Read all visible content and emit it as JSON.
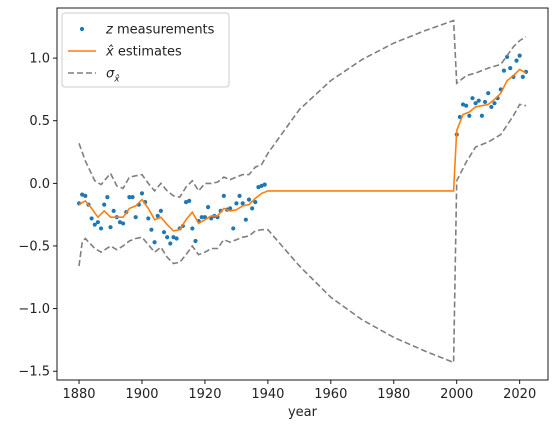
{
  "chart_data": {
    "type": "line",
    "xlabel": "year",
    "ylabel": "",
    "xlim": [
      1873,
      2029
    ],
    "ylim": [
      -1.57,
      1.4
    ],
    "xticks": [
      1880,
      1900,
      1920,
      1940,
      1960,
      1980,
      2000,
      2020
    ],
    "xtick_labels": [
      "1880",
      "1900",
      "1920",
      "1940",
      "1960",
      "1980",
      "2000",
      "2020"
    ],
    "yticks": [
      -1.5,
      -1.0,
      -0.5,
      0.0,
      0.5,
      1.0
    ],
    "ytick_labels": [
      "−1.5",
      "−1.0",
      "−0.5",
      "0.0",
      "0.5",
      "1.0"
    ],
    "legend": {
      "position": "upper-left",
      "entries": [
        {
          "math": "z",
          "text": " measurements",
          "style": "markers",
          "color": "#1f77b4"
        },
        {
          "math": "x̂",
          "text": " estimates",
          "style": "solid",
          "color": "#ff7f0e"
        },
        {
          "math": "σ",
          "sub": "x̂",
          "text": "",
          "style": "dashed",
          "color": "#7f7f7f"
        }
      ]
    },
    "series": [
      {
        "name": "z measurements",
        "style": "markers",
        "color": "#1f77b4",
        "x": [
          1880,
          1881,
          1882,
          1883,
          1884,
          1885,
          1886,
          1887,
          1888,
          1889,
          1890,
          1891,
          1892,
          1893,
          1894,
          1895,
          1896,
          1897,
          1898,
          1899,
          1900,
          1901,
          1902,
          1903,
          1904,
          1905,
          1906,
          1907,
          1908,
          1909,
          1910,
          1911,
          1912,
          1913,
          1914,
          1915,
          1916,
          1917,
          1918,
          1919,
          1920,
          1921,
          1922,
          1923,
          1924,
          1925,
          1926,
          1927,
          1928,
          1929,
          1930,
          1931,
          1932,
          1933,
          1934,
          1935,
          1936,
          1937,
          1938,
          1939,
          2000,
          2001,
          2002,
          2003,
          2004,
          2005,
          2006,
          2007,
          2008,
          2009,
          2010,
          2011,
          2012,
          2013,
          2014,
          2015,
          2016,
          2017,
          2018,
          2019,
          2020,
          2021,
          2022
        ],
        "y": [
          -0.16,
          -0.09,
          -0.1,
          -0.17,
          -0.28,
          -0.33,
          -0.31,
          -0.36,
          -0.17,
          -0.11,
          -0.35,
          -0.22,
          -0.27,
          -0.31,
          -0.32,
          -0.23,
          -0.11,
          -0.11,
          -0.27,
          -0.17,
          -0.08,
          -0.15,
          -0.28,
          -0.37,
          -0.47,
          -0.26,
          -0.22,
          -0.39,
          -0.43,
          -0.48,
          -0.43,
          -0.44,
          -0.36,
          -0.34,
          -0.15,
          -0.14,
          -0.36,
          -0.46,
          -0.3,
          -0.27,
          -0.27,
          -0.19,
          -0.28,
          -0.26,
          -0.27,
          -0.22,
          -0.1,
          -0.21,
          -0.2,
          -0.36,
          -0.16,
          -0.1,
          -0.16,
          -0.29,
          -0.13,
          -0.2,
          -0.15,
          -0.03,
          -0.02,
          -0.01,
          0.39,
          0.53,
          0.63,
          0.62,
          0.54,
          0.68,
          0.64,
          0.66,
          0.54,
          0.65,
          0.72,
          0.61,
          0.64,
          0.68,
          0.75,
          0.9,
          1.01,
          0.92,
          0.85,
          0.98,
          1.02,
          0.85,
          0.89
        ]
      },
      {
        "name": "x̂ estimates",
        "style": "solid",
        "color": "#ff7f0e",
        "x": [
          1880,
          1882,
          1884,
          1886,
          1888,
          1890,
          1892,
          1894,
          1896,
          1898,
          1900,
          1902,
          1904,
          1906,
          1908,
          1910,
          1912,
          1914,
          1916,
          1918,
          1920,
          1922,
          1924,
          1926,
          1928,
          1930,
          1932,
          1934,
          1936,
          1938,
          1940,
          1999,
          2000,
          2002,
          2004,
          2006,
          2008,
          2010,
          2012,
          2014,
          2016,
          2018,
          2020,
          2022
        ],
        "y": [
          -0.17,
          -0.14,
          -0.2,
          -0.27,
          -0.22,
          -0.27,
          -0.27,
          -0.27,
          -0.2,
          -0.18,
          -0.13,
          -0.2,
          -0.29,
          -0.27,
          -0.33,
          -0.38,
          -0.37,
          -0.29,
          -0.23,
          -0.32,
          -0.29,
          -0.26,
          -0.26,
          -0.2,
          -0.22,
          -0.21,
          -0.18,
          -0.17,
          -0.12,
          -0.08,
          -0.06,
          -0.06,
          0.42,
          0.55,
          0.57,
          0.61,
          0.62,
          0.63,
          0.67,
          0.72,
          0.82,
          0.86,
          0.91,
          0.88
        ]
      },
      {
        "name": "σx̂ upper",
        "style": "dashed",
        "color": "#7f7f7f",
        "x": [
          1880,
          1882,
          1885,
          1887,
          1890,
          1892,
          1894,
          1896,
          1898,
          1900,
          1902,
          1904,
          1906,
          1908,
          1910,
          1912,
          1914,
          1916,
          1918,
          1920,
          1922,
          1924,
          1926,
          1928,
          1930,
          1932,
          1934,
          1936,
          1938,
          1940,
          1950,
          1960,
          1970,
          1980,
          1990,
          1999,
          2000,
          2003,
          2006,
          2010,
          2014,
          2018,
          2020,
          2022
        ],
        "y": [
          0.32,
          0.18,
          0.02,
          -0.01,
          0.08,
          -0.02,
          -0.04,
          0.05,
          0.06,
          0.07,
          0.0,
          -0.06,
          0.0,
          -0.06,
          -0.1,
          -0.11,
          -0.03,
          0.02,
          -0.06,
          0.0,
          0.0,
          0.01,
          0.05,
          0.03,
          0.05,
          0.07,
          0.07,
          0.13,
          0.15,
          0.24,
          0.59,
          0.82,
          0.99,
          1.12,
          1.22,
          1.3,
          0.8,
          0.86,
          0.88,
          0.92,
          0.95,
          1.09,
          1.14,
          1.17
        ]
      },
      {
        "name": "σx̂ lower",
        "style": "dashed",
        "color": "#7f7f7f",
        "x": [
          1880,
          1881,
          1882,
          1885,
          1887,
          1890,
          1892,
          1894,
          1896,
          1898,
          1900,
          1902,
          1904,
          1906,
          1908,
          1910,
          1912,
          1914,
          1916,
          1918,
          1920,
          1922,
          1924,
          1926,
          1928,
          1930,
          1932,
          1934,
          1936,
          1938,
          1940,
          1950,
          1960,
          1970,
          1980,
          1990,
          1999,
          2000,
          2003,
          2006,
          2010,
          2014,
          2018,
          2020,
          2022
        ],
        "y": [
          -0.66,
          -0.47,
          -0.44,
          -0.52,
          -0.55,
          -0.5,
          -0.53,
          -0.5,
          -0.46,
          -0.44,
          -0.43,
          -0.49,
          -0.55,
          -0.51,
          -0.59,
          -0.64,
          -0.63,
          -0.57,
          -0.5,
          -0.57,
          -0.55,
          -0.52,
          -0.52,
          -0.45,
          -0.47,
          -0.45,
          -0.43,
          -0.42,
          -0.38,
          -0.37,
          -0.37,
          -0.66,
          -0.91,
          -1.09,
          -1.23,
          -1.34,
          -1.43,
          0.02,
          0.17,
          0.29,
          0.33,
          0.39,
          0.54,
          0.63,
          0.62
        ]
      }
    ],
    "grid": false
  }
}
